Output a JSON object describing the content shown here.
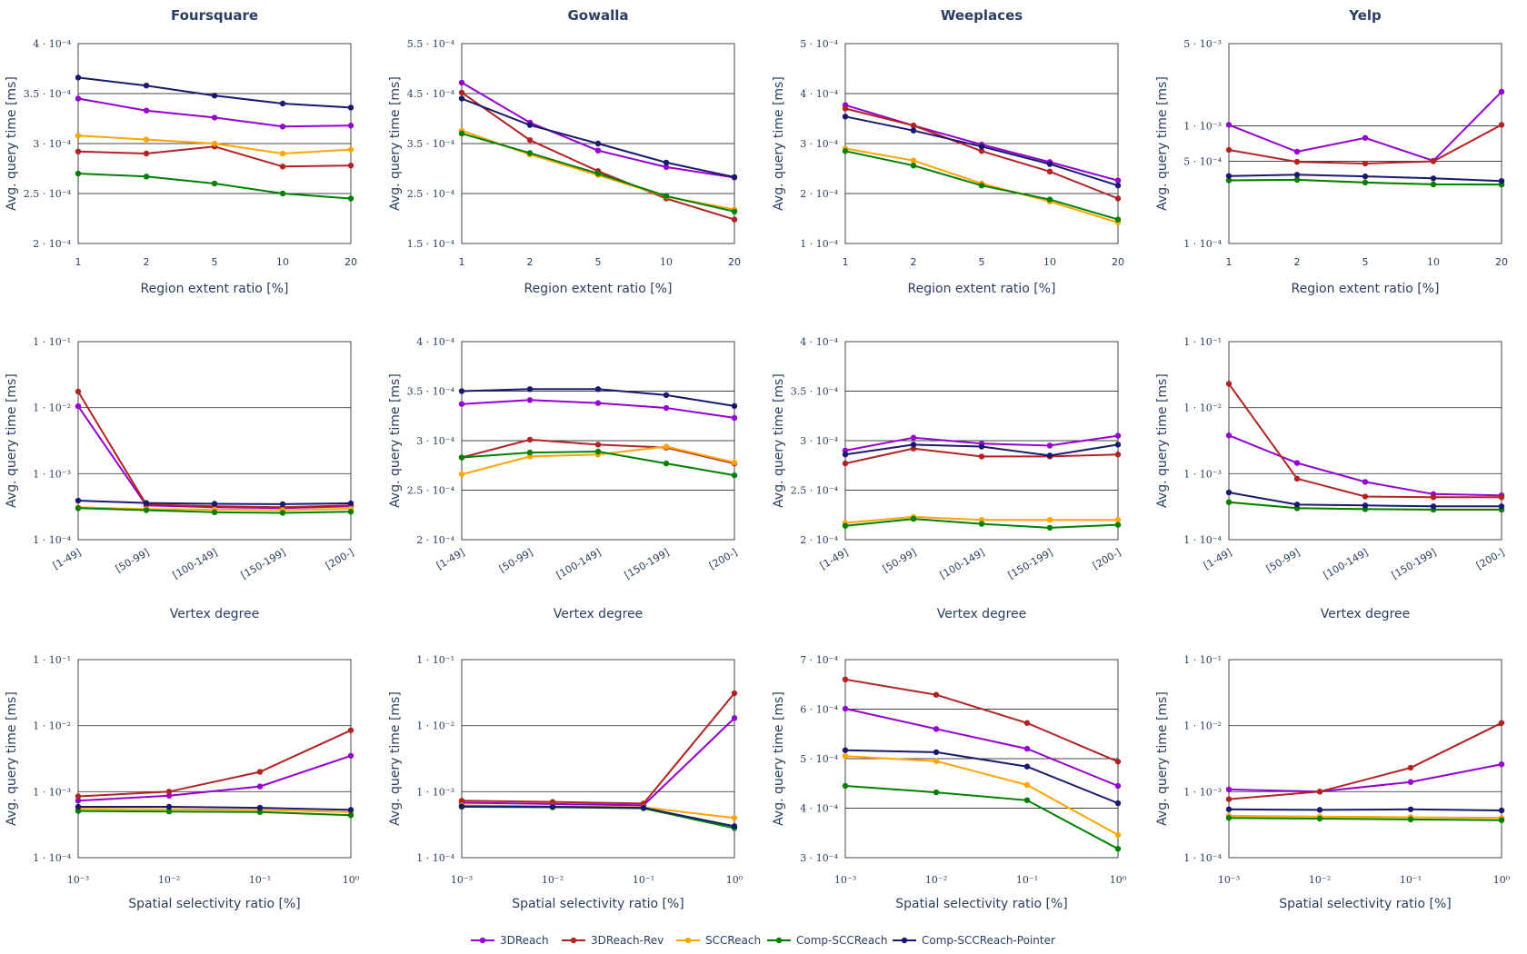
{
  "figure": {
    "series_names": [
      "3DReach",
      "3DReach-Rev",
      "SCCReach",
      "Comp-SCCReach",
      "Comp-SCCReach-Pointer"
    ],
    "series_colors": [
      "#9400d3",
      "#b22222",
      "#ffa500",
      "#008000",
      "#191970"
    ],
    "legend_position": "bottom-center"
  },
  "chart_data": [
    {
      "id": "p11",
      "type": "line",
      "title": "Foursquare",
      "xlabel": "Region extent ratio [%]",
      "ylabel": "Avg. query time [ms]",
      "yscale": "linear",
      "ylim": [
        0.0002,
        0.0004
      ],
      "categories": [
        "1",
        "2",
        "5",
        "10",
        "20"
      ],
      "yticks": [
        "2 · 10⁻⁴",
        "2.5 · 10⁻⁴",
        "3 · 10⁻⁴",
        "3.5 · 10⁻⁴",
        "4 · 10⁻⁴"
      ],
      "series": [
        {
          "name": "3DReach",
          "values": [
            0.000345,
            0.000333,
            0.000326,
            0.000317,
            0.000318
          ]
        },
        {
          "name": "3DReach-Rev",
          "values": [
            0.000292,
            0.00029,
            0.000297,
            0.000277,
            0.000278
          ]
        },
        {
          "name": "SCCReach",
          "values": [
            0.000308,
            0.000304,
            0.0003,
            0.00029,
            0.000294
          ]
        },
        {
          "name": "Comp-SCCReach",
          "values": [
            0.00027,
            0.000267,
            0.00026,
            0.00025,
            0.000245
          ]
        },
        {
          "name": "Comp-SCCReach-Pointer",
          "values": [
            0.000366,
            0.000358,
            0.000348,
            0.00034,
            0.000336
          ]
        }
      ]
    },
    {
      "id": "p12",
      "type": "line",
      "title": "Gowalla",
      "xlabel": "Region extent ratio [%]",
      "ylabel": "Avg. query time [ms]",
      "yscale": "linear",
      "ylim": [
        0.00015,
        0.00055
      ],
      "categories": [
        "1",
        "2",
        "5",
        "10",
        "20"
      ],
      "yticks": [
        "1.5 · 10⁻⁴",
        "2.5 · 10⁻⁴",
        "3.5 · 10⁻⁴",
        "4.5 · 10⁻⁴",
        "5.5 · 10⁻⁴"
      ],
      "series": [
        {
          "name": "3DReach",
          "values": [
            0.000472,
            0.000392,
            0.000336,
            0.000303,
            0.000282
          ]
        },
        {
          "name": "3DReach-Rev",
          "values": [
            0.000452,
            0.000357,
            0.000295,
            0.00024,
            0.000198
          ]
        },
        {
          "name": "SCCReach",
          "values": [
            0.000376,
            0.000328,
            0.000287,
            0.000244,
            0.000218
          ]
        },
        {
          "name": "Comp-SCCReach",
          "values": [
            0.00037,
            0.000331,
            0.00029,
            0.000245,
            0.000214
          ]
        },
        {
          "name": "Comp-SCCReach-Pointer",
          "values": [
            0.00044,
            0.000387,
            0.00035,
            0.000312,
            0.000283
          ]
        }
      ]
    },
    {
      "id": "p13",
      "type": "line",
      "title": "Weeplaces",
      "xlabel": "Region extent ratio [%]",
      "ylabel": "Avg. query time [ms]",
      "yscale": "linear",
      "ylim": [
        0.0001,
        0.0005
      ],
      "categories": [
        "1",
        "2",
        "5",
        "10",
        "20"
      ],
      "yticks": [
        "1 · 10⁻⁴",
        "2 · 10⁻⁴",
        "3 · 10⁻⁴",
        "4 · 10⁻⁴",
        "5 · 10⁻⁴"
      ],
      "series": [
        {
          "name": "3DReach",
          "values": [
            0.000377,
            0.000336,
            0.000298,
            0.000263,
            0.000226
          ]
        },
        {
          "name": "3DReach-Rev",
          "values": [
            0.00037,
            0.000336,
            0.000285,
            0.000244,
            0.00019
          ]
        },
        {
          "name": "SCCReach",
          "values": [
            0.00029,
            0.000266,
            0.00022,
            0.000184,
            0.000142
          ]
        },
        {
          "name": "Comp-SCCReach",
          "values": [
            0.000285,
            0.000256,
            0.000216,
            0.000188,
            0.000148
          ]
        },
        {
          "name": "Comp-SCCReach-Pointer",
          "values": [
            0.000354,
            0.000326,
            0.000294,
            0.000259,
            0.000216
          ]
        }
      ]
    },
    {
      "id": "p14",
      "type": "line",
      "title": "Yelp",
      "xlabel": "Region extent ratio [%]",
      "ylabel": "Avg. query time [ms]",
      "yscale": "log",
      "ylim": [
        0.0001,
        0.005
      ],
      "categories": [
        "1",
        "2",
        "5",
        "10",
        "20"
      ],
      "yticks": [
        "1 · 10⁻⁴",
        "5 · 10⁻⁴",
        "1 · 10⁻³",
        "5 · 10⁻³"
      ],
      "ytick_values": [
        0.0001,
        0.0005,
        0.001,
        0.005
      ],
      "series": [
        {
          "name": "3DReach",
          "values": [
            0.00102,
            0.000603,
            0.00079,
            0.000505,
            0.00195
          ]
        },
        {
          "name": "3DReach-Rev",
          "values": [
            0.000624,
            0.000495,
            0.000478,
            0.0005,
            0.00102
          ]
        },
        {
          "name": "SCCReach",
          "values": [
            0.000344,
            0.000348,
            0.00033,
            0.000318,
            0.000317
          ]
        },
        {
          "name": "Comp-SCCReach",
          "values": [
            0.000344,
            0.000348,
            0.00033,
            0.000318,
            0.000317
          ]
        },
        {
          "name": "Comp-SCCReach-Pointer",
          "values": [
            0.000375,
            0.000384,
            0.000372,
            0.000358,
            0.00034
          ]
        }
      ]
    },
    {
      "id": "p21",
      "type": "line",
      "title": "",
      "xlabel": "Vertex degree",
      "ylabel": "Avg. query time [ms]",
      "yscale": "log",
      "ylim": [
        0.0001,
        0.1
      ],
      "categories": [
        "[1-49]",
        "[50-99]",
        "[100-149]",
        "[150-199]",
        "[200-]"
      ],
      "yticks": [
        "1 · 10⁻⁴",
        "1 · 10⁻³",
        "1 · 10⁻²",
        "1 · 10⁻¹"
      ],
      "ytick_values": [
        0.0001,
        0.001,
        0.01,
        0.1
      ],
      "series": [
        {
          "name": "3DReach",
          "values": [
            0.0105,
            0.00033,
            0.00031,
            0.0003,
            0.00032
          ]
        },
        {
          "name": "3DReach-Rev",
          "values": [
            0.0175,
            0.00034,
            0.00032,
            0.00031,
            0.00033
          ]
        },
        {
          "name": "SCCReach",
          "values": [
            0.00031,
            0.00029,
            0.000285,
            0.00028,
            0.000295
          ]
        },
        {
          "name": "Comp-SCCReach",
          "values": [
            0.0003,
            0.00028,
            0.00026,
            0.000255,
            0.000265
          ]
        },
        {
          "name": "Comp-SCCReach-Pointer",
          "values": [
            0.00039,
            0.00036,
            0.00035,
            0.000345,
            0.000355
          ]
        }
      ]
    },
    {
      "id": "p22",
      "type": "line",
      "title": "",
      "xlabel": "Vertex degree",
      "ylabel": "Avg. query time [ms]",
      "yscale": "linear",
      "ylim": [
        0.0002,
        0.0004
      ],
      "categories": [
        "[1-49]",
        "[50-99]",
        "[100-149]",
        "[150-199]",
        "[200-]"
      ],
      "yticks": [
        "2 · 10⁻⁴",
        "2.5 · 10⁻⁴",
        "3 · 10⁻⁴",
        "3.5 · 10⁻⁴",
        "4 · 10⁻⁴"
      ],
      "series": [
        {
          "name": "3DReach",
          "values": [
            0.000337,
            0.000341,
            0.000338,
            0.000333,
            0.000323
          ]
        },
        {
          "name": "3DReach-Rev",
          "values": [
            0.000283,
            0.000301,
            0.000296,
            0.000293,
            0.000277
          ]
        },
        {
          "name": "SCCReach",
          "values": [
            0.000266,
            0.000284,
            0.000286,
            0.000294,
            0.000278
          ]
        },
        {
          "name": "Comp-SCCReach",
          "values": [
            0.000283,
            0.000288,
            0.000289,
            0.000277,
            0.000265
          ]
        },
        {
          "name": "Comp-SCCReach-Pointer",
          "values": [
            0.00035,
            0.000352,
            0.000352,
            0.000346,
            0.000335
          ]
        }
      ]
    },
    {
      "id": "p23",
      "type": "line",
      "title": "",
      "xlabel": "Vertex degree",
      "ylabel": "Avg. query time [ms]",
      "yscale": "linear",
      "ylim": [
        0.0002,
        0.0004
      ],
      "categories": [
        "[1-49]",
        "[50-99]",
        "[100-149]",
        "[150-199]",
        "[200-]"
      ],
      "yticks": [
        "2 · 10⁻⁴",
        "2.5 · 10⁻⁴",
        "3 · 10⁻⁴",
        "3.5 · 10⁻⁴",
        "4 · 10⁻⁴"
      ],
      "series": [
        {
          "name": "3DReach",
          "values": [
            0.00029,
            0.000303,
            0.000297,
            0.000295,
            0.000305
          ]
        },
        {
          "name": "3DReach-Rev",
          "values": [
            0.000277,
            0.000292,
            0.000284,
            0.000284,
            0.000286
          ]
        },
        {
          "name": "SCCReach",
          "values": [
            0.000217,
            0.000223,
            0.00022,
            0.00022,
            0.00022
          ]
        },
        {
          "name": "Comp-SCCReach",
          "values": [
            0.000214,
            0.000221,
            0.000216,
            0.000212,
            0.000215
          ]
        },
        {
          "name": "Comp-SCCReach-Pointer",
          "values": [
            0.000286,
            0.000296,
            0.000294,
            0.000285,
            0.000296
          ]
        }
      ]
    },
    {
      "id": "p24",
      "type": "line",
      "title": "",
      "xlabel": "Vertex degree",
      "ylabel": "Avg. query time [ms]",
      "yscale": "log",
      "ylim": [
        0.0001,
        0.1
      ],
      "categories": [
        "[1-49]",
        "[50-99]",
        "[100-149]",
        "[150-199]",
        "[200-]"
      ],
      "yticks": [
        "1 · 10⁻⁴",
        "1 · 10⁻³",
        "1 · 10⁻²",
        "1 · 10⁻¹"
      ],
      "ytick_values": [
        0.0001,
        0.001,
        0.01,
        0.1
      ],
      "series": [
        {
          "name": "3DReach",
          "values": [
            0.0038,
            0.00145,
            0.00075,
            0.00049,
            0.00047
          ]
        },
        {
          "name": "3DReach-Rev",
          "values": [
            0.023,
            0.00084,
            0.00045,
            0.00044,
            0.00044
          ]
        },
        {
          "name": "SCCReach",
          "values": [
            0.00037,
            0.0003,
            0.00029,
            0.000285,
            0.000285
          ]
        },
        {
          "name": "Comp-SCCReach",
          "values": [
            0.00037,
            0.0003,
            0.00029,
            0.000285,
            0.000285
          ]
        },
        {
          "name": "Comp-SCCReach-Pointer",
          "values": [
            0.00052,
            0.00034,
            0.00033,
            0.00032,
            0.00032
          ]
        }
      ]
    },
    {
      "id": "p31",
      "type": "line",
      "title": "",
      "xlabel": "Spatial selectivity ratio [%]",
      "ylabel": "Avg. query time [ms]",
      "yscale": "log",
      "ylim": [
        0.0001,
        0.1
      ],
      "categories": [
        "10⁻³",
        "10⁻²",
        "10⁻¹",
        "10⁰"
      ],
      "yticks": [
        "1 · 10⁻⁴",
        "1 · 10⁻³",
        "1 · 10⁻²",
        "1 · 10⁻¹"
      ],
      "ytick_values": [
        0.0001,
        0.001,
        0.01,
        0.1
      ],
      "series": [
        {
          "name": "3DReach",
          "values": [
            0.00073,
            0.00087,
            0.0012,
            0.0035
          ]
        },
        {
          "name": "3DReach-Rev",
          "values": [
            0.00085,
            0.001,
            0.002,
            0.0085
          ]
        },
        {
          "name": "SCCReach",
          "values": [
            0.00055,
            0.00054,
            0.00053,
            0.00049
          ]
        },
        {
          "name": "Comp-SCCReach",
          "values": [
            0.00051,
            0.0005,
            0.00049,
            0.00044
          ]
        },
        {
          "name": "Comp-SCCReach-Pointer",
          "values": [
            0.00059,
            0.00059,
            0.00057,
            0.00053
          ]
        }
      ]
    },
    {
      "id": "p32",
      "type": "line",
      "title": "",
      "xlabel": "Spatial selectivity ratio [%]",
      "ylabel": "Avg. query time [ms]",
      "yscale": "log",
      "ylim": [
        0.0001,
        0.1
      ],
      "categories": [
        "10⁻³",
        "10⁻²",
        "10⁻¹",
        "10⁰"
      ],
      "yticks": [
        "1 · 10⁻⁴",
        "1 · 10⁻³",
        "1 · 10⁻²",
        "1 · 10⁻¹"
      ],
      "ytick_values": [
        0.0001,
        0.001,
        0.01,
        0.1
      ],
      "series": [
        {
          "name": "3DReach",
          "values": [
            0.00068,
            0.00065,
            0.00062,
            0.013
          ]
        },
        {
          "name": "3DReach-Rev",
          "values": [
            0.00073,
            0.0007,
            0.00066,
            0.031
          ]
        },
        {
          "name": "SCCReach",
          "values": [
            0.00062,
            0.0006,
            0.00058,
            0.0004
          ]
        },
        {
          "name": "Comp-SCCReach",
          "values": [
            0.00059,
            0.00058,
            0.00056,
            0.00028
          ]
        },
        {
          "name": "Comp-SCCReach-Pointer",
          "values": [
            0.0006,
            0.00059,
            0.00057,
            0.0003
          ]
        }
      ]
    },
    {
      "id": "p33",
      "type": "line",
      "title": "",
      "xlabel": "Spatial selectivity ratio [%]",
      "ylabel": "Avg. query time [ms]",
      "yscale": "linear",
      "ylim": [
        0.0003,
        0.0007
      ],
      "categories": [
        "10⁻³",
        "10⁻²",
        "10⁻¹",
        "10⁰"
      ],
      "yticks": [
        "3 · 10⁻⁴",
        "4 · 10⁻⁴",
        "5 · 10⁻⁴",
        "6 · 10⁻⁴",
        "7 · 10⁻⁴"
      ],
      "series": [
        {
          "name": "3DReach",
          "values": [
            0.000601,
            0.00056,
            0.00052,
            0.000445
          ]
        },
        {
          "name": "3DReach-Rev",
          "values": [
            0.00066,
            0.000629,
            0.000572,
            0.000494
          ]
        },
        {
          "name": "SCCReach",
          "values": [
            0.000505,
            0.000495,
            0.000447,
            0.000346
          ]
        },
        {
          "name": "Comp-SCCReach",
          "values": [
            0.000445,
            0.000432,
            0.000416,
            0.000318
          ]
        },
        {
          "name": "Comp-SCCReach-Pointer",
          "values": [
            0.000517,
            0.000513,
            0.000484,
            0.00041
          ]
        }
      ]
    },
    {
      "id": "p34",
      "type": "line",
      "title": "",
      "xlabel": "Spatial selectivity ratio [%]",
      "ylabel": "Avg. query time [ms]",
      "yscale": "log",
      "ylim": [
        0.0001,
        0.1
      ],
      "categories": [
        "10⁻³",
        "10⁻²",
        "10⁻¹",
        "10⁰"
      ],
      "yticks": [
        "1 · 10⁻⁴",
        "1 · 10⁻³",
        "1 · 10⁻²",
        "1 · 10⁻¹"
      ],
      "ytick_values": [
        0.0001,
        0.001,
        0.01,
        0.1
      ],
      "series": [
        {
          "name": "3DReach",
          "values": [
            0.00108,
            0.001,
            0.0014,
            0.0026
          ]
        },
        {
          "name": "3DReach-Rev",
          "values": [
            0.00077,
            0.001,
            0.0023,
            0.011
          ]
        },
        {
          "name": "SCCReach",
          "values": [
            0.00043,
            0.00042,
            0.00041,
            0.0004
          ]
        },
        {
          "name": "Comp-SCCReach",
          "values": [
            0.0004,
            0.00039,
            0.00038,
            0.00037
          ]
        },
        {
          "name": "Comp-SCCReach-Pointer",
          "values": [
            0.00054,
            0.00053,
            0.00054,
            0.00052
          ]
        }
      ]
    }
  ]
}
